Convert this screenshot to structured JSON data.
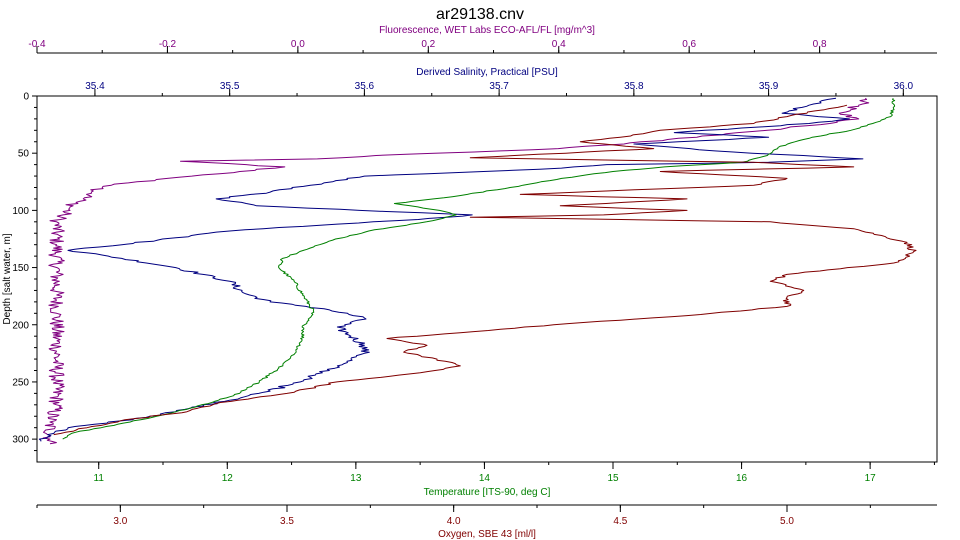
{
  "chart_data": {
    "type": "line",
    "title": "ar29138.cnv",
    "y_axis": {
      "label": "Depth [salt water, m]",
      "range": [
        0,
        320
      ],
      "reversed": true,
      "ticks": [
        "0",
        "50",
        "100",
        "150",
        "200",
        "250",
        "300"
      ],
      "tick_values": [
        0,
        50,
        100,
        150,
        200,
        250,
        300
      ]
    },
    "x_axes": {
      "fluorescence": {
        "label": "Fluorescence, WET Labs ECO-AFL/FL [mg/m^3]",
        "color": "#800080",
        "range": [
          -0.4,
          0.98
        ],
        "ticks": [
          "-0.4",
          "-0.2",
          "0.0",
          "0.2",
          "0.4",
          "0.6",
          "0.8"
        ],
        "tick_values": [
          -0.4,
          -0.2,
          0.0,
          0.2,
          0.4,
          0.6,
          0.8
        ]
      },
      "salinity": {
        "label": "Derived Salinity, Practical [PSU]",
        "color": "#000080",
        "range": [
          35.357,
          36.025
        ],
        "ticks": [
          "35.4",
          "35.5",
          "35.6",
          "35.7",
          "35.8",
          "35.9",
          "36.0"
        ],
        "tick_values": [
          35.4,
          35.5,
          35.6,
          35.7,
          35.8,
          35.9,
          36.0
        ]
      },
      "temperature": {
        "label": "Temperature [ITS-90, deg C]",
        "color": "#008000",
        "range": [
          10.52,
          17.52
        ],
        "ticks": [
          "11",
          "12",
          "13",
          "14",
          "15",
          "16",
          "17"
        ],
        "tick_values": [
          11,
          12,
          13,
          14,
          15,
          16,
          17
        ]
      },
      "oxygen": {
        "label": "Oxygen, SBE 43 [ml/l]",
        "color": "#800000",
        "range": [
          2.75,
          5.45
        ],
        "ticks": [
          "3.0",
          "3.5",
          "4.0",
          "4.5",
          "5.0"
        ],
        "tick_values": [
          3.0,
          3.5,
          4.0,
          4.5,
          5.0
        ]
      }
    },
    "series": [
      {
        "name": "Fluorescence",
        "axis": "fluorescence",
        "color": "#800080",
        "jitter": 0.012,
        "points": [
          [
            0.87,
            2
          ],
          [
            0.86,
            8
          ],
          [
            0.83,
            15
          ],
          [
            0.86,
            20
          ],
          [
            0.78,
            26
          ],
          [
            0.72,
            30
          ],
          [
            0.62,
            35
          ],
          [
            0.5,
            42
          ],
          [
            0.36,
            47
          ],
          [
            0.12,
            52
          ],
          [
            0.03,
            55
          ],
          [
            -0.18,
            57
          ],
          [
            -0.02,
            62
          ],
          [
            -0.12,
            68
          ],
          [
            -0.2,
            72
          ],
          [
            -0.26,
            76
          ],
          [
            -0.3,
            80
          ],
          [
            -0.32,
            87
          ],
          [
            -0.34,
            93
          ],
          [
            -0.35,
            98
          ],
          [
            -0.36,
            104
          ],
          [
            -0.37,
            110
          ],
          [
            -0.37,
            130
          ],
          [
            -0.37,
            160
          ],
          [
            -0.37,
            190
          ],
          [
            -0.37,
            220
          ],
          [
            -0.37,
            250
          ],
          [
            -0.37,
            270
          ],
          [
            -0.38,
            285
          ],
          [
            -0.38,
            300
          ],
          [
            -0.38,
            304
          ]
        ]
      },
      {
        "name": "Salinity",
        "axis": "salinity",
        "color": "#000080",
        "jitter": 0.004,
        "points": [
          [
            35.95,
            2
          ],
          [
            35.93,
            8
          ],
          [
            35.91,
            15
          ],
          [
            35.96,
            20
          ],
          [
            35.93,
            24
          ],
          [
            35.88,
            28
          ],
          [
            35.83,
            32
          ],
          [
            35.9,
            36
          ],
          [
            35.8,
            42
          ],
          [
            35.86,
            48
          ],
          [
            35.97,
            55
          ],
          [
            35.9,
            58
          ],
          [
            35.78,
            60
          ],
          [
            35.73,
            64
          ],
          [
            35.6,
            70
          ],
          [
            35.56,
            78
          ],
          [
            35.53,
            84
          ],
          [
            35.49,
            90
          ],
          [
            35.52,
            96
          ],
          [
            35.68,
            104
          ],
          [
            35.64,
            108
          ],
          [
            35.58,
            112
          ],
          [
            35.5,
            118
          ],
          [
            35.46,
            124
          ],
          [
            35.42,
            130
          ],
          [
            35.38,
            135
          ],
          [
            35.41,
            140
          ],
          [
            35.46,
            150
          ],
          [
            35.5,
            162
          ],
          [
            35.51,
            172
          ],
          [
            35.53,
            180
          ],
          [
            35.57,
            186
          ],
          [
            35.6,
            194
          ],
          [
            35.58,
            202
          ],
          [
            35.59,
            210
          ],
          [
            35.6,
            218
          ],
          [
            35.6,
            225
          ],
          [
            35.58,
            236
          ],
          [
            35.56,
            246
          ],
          [
            35.53,
            258
          ],
          [
            35.5,
            266
          ],
          [
            35.46,
            276
          ],
          [
            35.42,
            284
          ],
          [
            35.38,
            290
          ],
          [
            35.37,
            294
          ],
          [
            35.36,
            302
          ]
        ]
      },
      {
        "name": "Temperature",
        "axis": "temperature",
        "color": "#008000",
        "jitter": 0.015,
        "points": [
          [
            17.18,
            2
          ],
          [
            17.18,
            10
          ],
          [
            17.16,
            18
          ],
          [
            17.02,
            24
          ],
          [
            16.85,
            30
          ],
          [
            16.55,
            36
          ],
          [
            16.3,
            44
          ],
          [
            16.2,
            52
          ],
          [
            16.0,
            58
          ],
          [
            15.4,
            62
          ],
          [
            15.0,
            66
          ],
          [
            14.6,
            72
          ],
          [
            14.2,
            80
          ],
          [
            13.75,
            88
          ],
          [
            13.3,
            94
          ],
          [
            13.65,
            100
          ],
          [
            13.78,
            104
          ],
          [
            13.55,
            110
          ],
          [
            13.1,
            118
          ],
          [
            12.82,
            126
          ],
          [
            12.62,
            134
          ],
          [
            12.43,
            142
          ],
          [
            12.4,
            150
          ],
          [
            12.52,
            162
          ],
          [
            12.6,
            176
          ],
          [
            12.67,
            188
          ],
          [
            12.6,
            200
          ],
          [
            12.58,
            214
          ],
          [
            12.52,
            226
          ],
          [
            12.4,
            238
          ],
          [
            12.25,
            250
          ],
          [
            12.05,
            262
          ],
          [
            11.75,
            272
          ],
          [
            11.45,
            280
          ],
          [
            11.12,
            288
          ],
          [
            10.82,
            294
          ],
          [
            10.72,
            300
          ]
        ]
      },
      {
        "name": "Oxygen",
        "axis": "oxygen",
        "color": "#800000",
        "jitter": 0.012,
        "points": [
          [
            5.18,
            8
          ],
          [
            5.0,
            18
          ],
          [
            4.9,
            24
          ],
          [
            4.62,
            30
          ],
          [
            4.5,
            36
          ],
          [
            4.38,
            40
          ],
          [
            4.6,
            46
          ],
          [
            4.05,
            54
          ],
          [
            4.9,
            58
          ],
          [
            5.2,
            62
          ],
          [
            4.62,
            66
          ],
          [
            5.0,
            72
          ],
          [
            4.9,
            78
          ],
          [
            4.2,
            86
          ],
          [
            4.7,
            90
          ],
          [
            4.32,
            96
          ],
          [
            4.7,
            100
          ],
          [
            4.45,
            104
          ],
          [
            4.05,
            106
          ],
          [
            4.95,
            110
          ],
          [
            5.2,
            116
          ],
          [
            5.36,
            128
          ],
          [
            5.38,
            136
          ],
          [
            5.32,
            146
          ],
          [
            5.0,
            156
          ],
          [
            4.95,
            162
          ],
          [
            5.05,
            170
          ],
          [
            5.0,
            176
          ],
          [
            5.0,
            184
          ],
          [
            4.7,
            192
          ],
          [
            4.3,
            200
          ],
          [
            4.06,
            206
          ],
          [
            3.8,
            212
          ],
          [
            3.92,
            218
          ],
          [
            3.85,
            224
          ],
          [
            3.95,
            230
          ],
          [
            4.02,
            236
          ],
          [
            3.9,
            242
          ],
          [
            3.65,
            250
          ],
          [
            3.5,
            260
          ],
          [
            3.3,
            268
          ],
          [
            3.2,
            276
          ],
          [
            3.0,
            284
          ],
          [
            2.9,
            290
          ],
          [
            2.8,
            296
          ]
        ]
      }
    ]
  }
}
